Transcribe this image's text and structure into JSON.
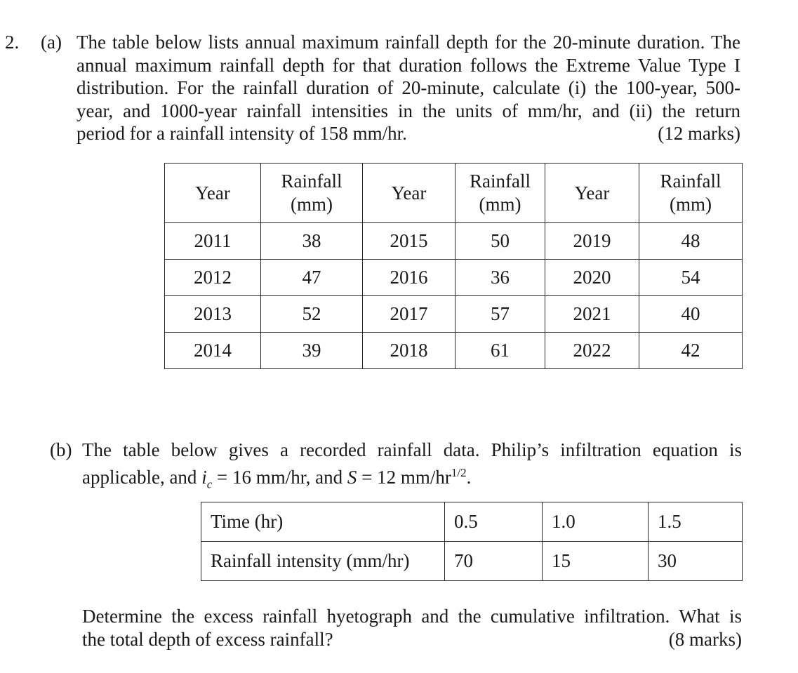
{
  "question": {
    "number": "2.",
    "part_a": {
      "label": "(a)",
      "lines": [
        "The table below lists annual maximum rainfall depth for the 20-minute duration. The",
        "annual maximum rainfall depth for that duration follows the Extreme Value Type I",
        "distribution. For the rainfall duration of 20-minute, calculate (i) the 100-year, 500-",
        "year, and 1000-year rainfall intensities in the units of mm/hr, and (ii) the return"
      ],
      "last_line": "period for a rainfall intensity of 158 mm/hr.",
      "marks": "(12 marks)",
      "table": {
        "headers": [
          {
            "l1": "Year",
            "l2": ""
          },
          {
            "l1": "Rainfall",
            "l2": "(mm)"
          },
          {
            "l1": "Year",
            "l2": ""
          },
          {
            "l1": "Rainfall",
            "l2": "(mm)"
          },
          {
            "l1": "Year",
            "l2": ""
          },
          {
            "l1": "Rainfall",
            "l2": "(mm)"
          }
        ],
        "rows": [
          [
            "2011",
            "38",
            "2015",
            "50",
            "2019",
            "48"
          ],
          [
            "2012",
            "47",
            "2016",
            "36",
            "2020",
            "54"
          ],
          [
            "2013",
            "52",
            "2017",
            "57",
            "2021",
            "40"
          ],
          [
            "2014",
            "39",
            "2018",
            "61",
            "2022",
            "42"
          ]
        ]
      }
    },
    "part_b": {
      "label": "(b)",
      "line1": "The table below gives a recorded rainfall data. Philip’s infiltration equation is",
      "line2_a": "applicable, and ",
      "ic_var": "i",
      "ic_sub": "c",
      "line2_b": " = 16 mm/hr, and ",
      "s_var": "S",
      "line2_c": " = 12 mm/hr",
      "s_exp": "1/2",
      "line2_d": ".",
      "table": {
        "rows": [
          {
            "label": "Time (hr)",
            "values": [
              "0.5",
              "1.0",
              "1.5"
            ]
          },
          {
            "label": "Rainfall intensity (mm/hr)",
            "values": [
              "70",
              "15",
              "30"
            ]
          }
        ]
      },
      "question_line1": "Determine the excess rainfall hyetograph and the cumulative infiltration. What is",
      "question_line2": "the total depth of excess rainfall?",
      "marks": "(8 marks)"
    }
  }
}
